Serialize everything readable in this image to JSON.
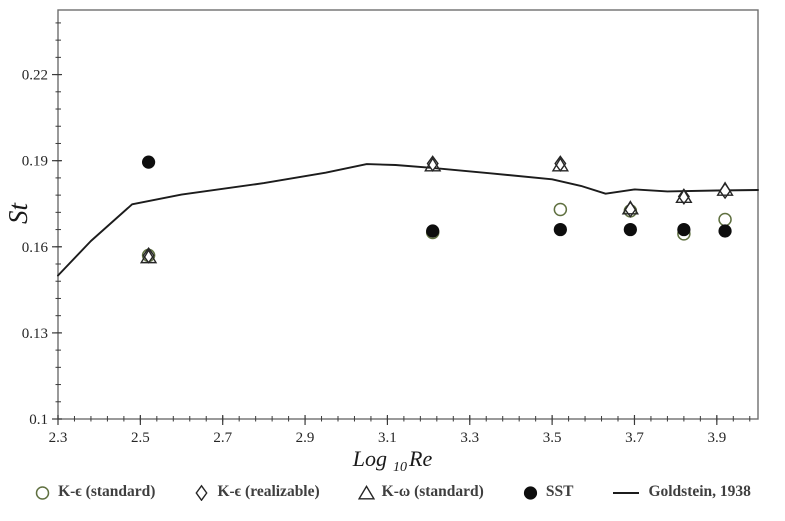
{
  "colors": {
    "frame": "#6e6e6e",
    "tick": "#3a3a3a",
    "tick_label": "#262626",
    "legend_text": "#3f3f3f",
    "olive_marker": "#5f7040",
    "dark_marker": "#262626",
    "sst_fill": "#0d0d0d",
    "line": "#1c1c1c",
    "background": "#ffffff"
  },
  "chart_data": {
    "type": "scatter",
    "title": "",
    "ylabel": "St",
    "xlabel": {
      "prefix": "Log",
      "sub": "10",
      "suffix": "Re"
    },
    "xlim": [
      2.3,
      4.0
    ],
    "ylim": [
      0.1,
      0.2425
    ],
    "x_minor_step": 0.04,
    "y_minor_step": 0.006,
    "x_tick_values": [
      2.3,
      2.5,
      2.7,
      2.9,
      3.1,
      3.3,
      3.5,
      3.7,
      3.9
    ],
    "x_tick_labels": [
      "2.3",
      "2.5",
      "2.7",
      "2.9",
      "3.1",
      "3.3",
      "3.5",
      "3.7",
      "3.9"
    ],
    "y_tick_values": [
      0.1,
      0.13,
      0.16,
      0.19,
      0.22
    ],
    "y_tick_labels": [
      "0.1",
      "0.13",
      "0.16",
      "0.19",
      "0.22"
    ],
    "grid": false,
    "legend_position": "bottom",
    "series": [
      {
        "name": "K-ϵ (standard)",
        "marker": "circle-open",
        "color": "#5f7040",
        "points": [
          [
            2.52,
            0.157
          ],
          [
            3.21,
            0.165
          ],
          [
            3.52,
            0.173
          ],
          [
            3.69,
            0.1725
          ],
          [
            3.82,
            0.1645
          ],
          [
            3.92,
            0.1695
          ]
        ]
      },
      {
        "name": "K-ϵ (realizable)",
        "marker": "diamond-open",
        "color": "#262626",
        "points": [
          [
            2.52,
            0.157
          ],
          [
            3.21,
            0.189
          ],
          [
            3.52,
            0.189
          ],
          [
            3.69,
            0.173
          ],
          [
            3.82,
            0.1775
          ],
          [
            3.92,
            0.1795
          ]
        ]
      },
      {
        "name": "K-ω (standard)",
        "marker": "triangle-open",
        "color": "#262626",
        "points": [
          [
            2.52,
            0.1565
          ],
          [
            3.21,
            0.1885
          ],
          [
            3.52,
            0.1885
          ],
          [
            3.69,
            0.1735
          ],
          [
            3.82,
            0.1775
          ],
          [
            3.92,
            0.18
          ]
        ]
      },
      {
        "name": "SST",
        "marker": "circle-filled",
        "color": "#0d0d0d",
        "points": [
          [
            2.52,
            0.1895
          ],
          [
            3.21,
            0.1655
          ],
          [
            3.52,
            0.166
          ],
          [
            3.69,
            0.166
          ],
          [
            3.82,
            0.166
          ],
          [
            3.92,
            0.1655
          ]
        ]
      }
    ],
    "line_series": {
      "name": "Goldstein, 1938",
      "color": "#1c1c1c",
      "points": [
        [
          2.3,
          0.15
        ],
        [
          2.38,
          0.162
        ],
        [
          2.48,
          0.1748
        ],
        [
          2.6,
          0.1782
        ],
        [
          2.8,
          0.1822
        ],
        [
          2.95,
          0.1858
        ],
        [
          3.05,
          0.1888
        ],
        [
          3.12,
          0.1885
        ],
        [
          3.21,
          0.1875
        ],
        [
          3.35,
          0.1856
        ],
        [
          3.5,
          0.1835
        ],
        [
          3.57,
          0.1812
        ],
        [
          3.63,
          0.1785
        ],
        [
          3.7,
          0.18
        ],
        [
          3.78,
          0.1793
        ],
        [
          3.9,
          0.1796
        ],
        [
          4.0,
          0.1798
        ]
      ]
    }
  },
  "legend": {
    "items": [
      {
        "label": "K-ϵ (standard)",
        "marker": "circle-open",
        "color": "#5f7040"
      },
      {
        "label": "K-ϵ (realizable)",
        "marker": "diamond-open",
        "color": "#262626"
      },
      {
        "label": "K-ω (standard)",
        "marker": "triangle-open",
        "color": "#262626"
      },
      {
        "label": "SST",
        "marker": "circle-filled",
        "color": "#0d0d0d"
      },
      {
        "label": "Goldstein, 1938",
        "marker": "line",
        "color": "#1c1c1c"
      }
    ]
  }
}
